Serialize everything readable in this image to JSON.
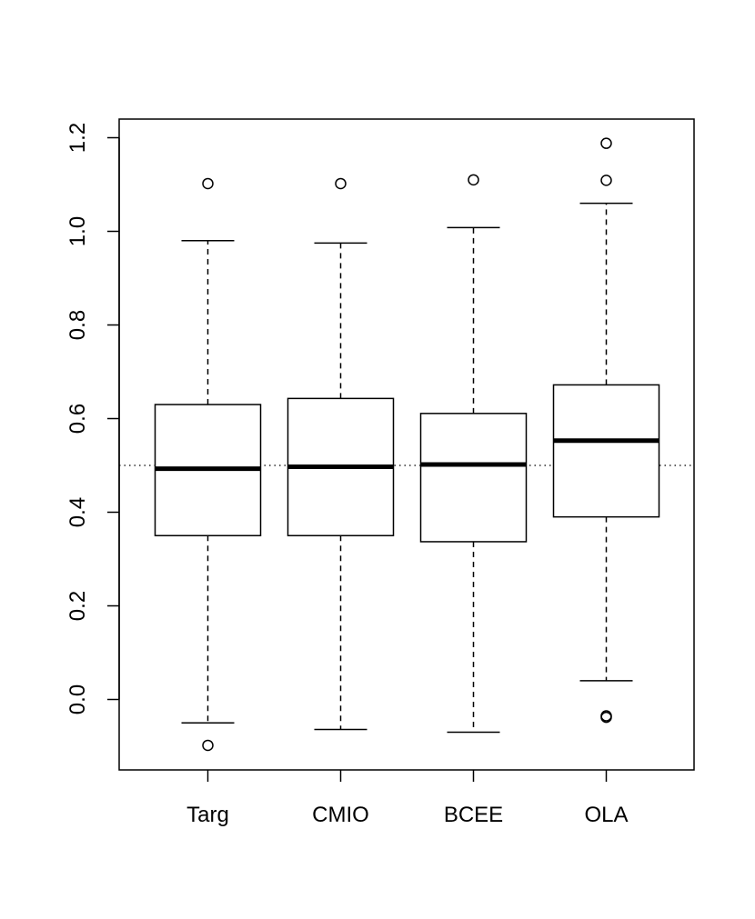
{
  "chart_data": {
    "type": "boxplot",
    "title": "",
    "xlabel": "",
    "ylabel": "",
    "categories": [
      "Targ",
      "CMIO",
      "BCEE",
      "OLA"
    ],
    "ylim": [
      -0.15,
      1.24
    ],
    "yticks": [
      0.0,
      0.2,
      0.4,
      0.6,
      0.8,
      1.0,
      1.2
    ],
    "ytick_labels": [
      "0.0",
      "0.2",
      "0.4",
      "0.6",
      "0.8",
      "1.0",
      "1.2"
    ],
    "reference_line": {
      "y": 0.5,
      "style": "dotted"
    },
    "boxes": [
      {
        "name": "Targ",
        "whisker_low": -0.05,
        "q1": 0.35,
        "median": 0.493,
        "q3": 0.63,
        "whisker_high": 0.98,
        "outliers": [
          1.102,
          -0.098
        ]
      },
      {
        "name": "CMIO",
        "whisker_low": -0.064,
        "q1": 0.35,
        "median": 0.497,
        "q3": 0.643,
        "whisker_high": 0.975,
        "outliers": [
          1.102
        ]
      },
      {
        "name": "BCEE",
        "whisker_low": -0.07,
        "q1": 0.337,
        "median": 0.502,
        "q3": 0.611,
        "whisker_high": 1.008,
        "outliers": [
          1.11
        ]
      },
      {
        "name": "OLA",
        "whisker_low": 0.04,
        "q1": 0.39,
        "median": 0.553,
        "q3": 0.672,
        "whisker_high": 1.06,
        "outliers": [
          1.188,
          1.109,
          -0.035,
          -0.038
        ]
      }
    ]
  }
}
